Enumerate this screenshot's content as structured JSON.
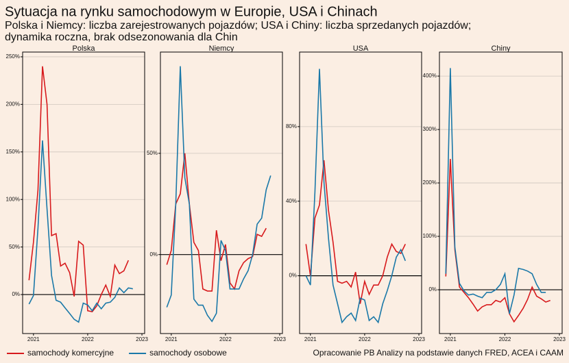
{
  "title": "Sytuacja na rynku samochodowym w Europie, USA i Chinach",
  "subtitle": [
    "Polska i Niemcy: liczba zarejestrowanych pojazdów; USA i Chiny: liczba sprzedanych pojazdów;",
    "dynamika roczna, brak odsezonowania dla Chin"
  ],
  "source": "Opracowanie PB Analizy na podstawie danych FRED, ACEA i CAAM",
  "chart_data": [
    {
      "type": "line",
      "title": "Polska",
      "xlim": [
        2020.8,
        2023.05
      ],
      "xticks": [
        2021,
        2022,
        2023
      ],
      "ylim": [
        -41,
        255
      ],
      "yticks": [
        {
          "value": 0,
          "label": "0%"
        },
        {
          "value": 50,
          "label": "50%"
        },
        {
          "value": 100,
          "label": "100%"
        },
        {
          "value": 150,
          "label": "150%"
        },
        {
          "value": 200,
          "label": "200%"
        },
        {
          "value": 250,
          "label": "250%"
        }
      ],
      "grid": true,
      "x": [
        2020.917,
        2021,
        2021.083,
        2021.167,
        2021.25,
        2021.333,
        2021.417,
        2021.5,
        2021.583,
        2021.667,
        2021.75,
        2021.833,
        2021.917,
        2022,
        2022.083,
        2022.167,
        2022.25,
        2022.333,
        2022.417,
        2022.5,
        2022.583,
        2022.667,
        2022.75,
        2022.833
      ],
      "series": [
        {
          "name": "samochody komercyjne",
          "color": "#d7191c",
          "values": [
            15,
            55,
            110,
            240,
            200,
            62,
            64,
            30,
            33,
            23,
            -2,
            56,
            52,
            -17,
            -18,
            -12,
            0,
            10,
            -2,
            31,
            22,
            25,
            36,
            null
          ]
        },
        {
          "name": "samochody osobowe",
          "color": "#1a78a8",
          "values": [
            -10,
            -1,
            70,
            162,
            90,
            20,
            -6,
            -8,
            -14,
            -20,
            -26,
            -29,
            -9,
            -11,
            -17,
            -9,
            -15,
            -9,
            -8,
            -3,
            7,
            2,
            7,
            6
          ]
        }
      ]
    },
    {
      "type": "line",
      "title": "Niemcy",
      "xlim": [
        2020.8,
        2023.05
      ],
      "xticks": [
        2021,
        2022,
        2023
      ],
      "ylim": [
        -39,
        100
      ],
      "yticks": [
        {
          "value": 0,
          "label": "0%"
        },
        {
          "value": 50,
          "label": "50%"
        }
      ],
      "grid": true,
      "x": [
        2020.917,
        2021,
        2021.083,
        2021.167,
        2021.25,
        2021.333,
        2021.417,
        2021.5,
        2021.583,
        2021.667,
        2021.75,
        2021.833,
        2021.917,
        2022,
        2022.083,
        2022.167,
        2022.25,
        2022.333,
        2022.417,
        2022.5,
        2022.583,
        2022.667,
        2022.75,
        2022.833
      ],
      "series": [
        {
          "name": "samochody komercyjne",
          "color": "#d7191c",
          "values": [
            -5,
            2,
            25,
            30,
            50,
            25,
            6,
            2,
            -17,
            -18,
            -18,
            12,
            -3,
            5,
            -14,
            -17,
            -8,
            -4,
            -2,
            -1,
            10,
            9,
            13,
            null
          ]
        },
        {
          "name": "samochody osobowe",
          "color": "#1a78a8",
          "values": [
            -26,
            -20,
            25,
            93,
            38,
            25,
            -22,
            -25,
            -25,
            -30,
            -33,
            -29,
            7,
            2,
            -17,
            -17,
            -17,
            -12,
            -8,
            0,
            15,
            18,
            32,
            39
          ]
        }
      ]
    },
    {
      "type": "line",
      "title": "USA",
      "xlim": [
        2020.8,
        2023.05
      ],
      "xticks": [
        2021,
        2022,
        2023
      ],
      "ylim": [
        -31,
        120
      ],
      "yticks": [
        {
          "value": 0,
          "label": "0%"
        },
        {
          "value": 40,
          "label": "40%"
        },
        {
          "value": 80,
          "label": "80%"
        }
      ],
      "grid": true,
      "x": [
        2020.917,
        2021,
        2021.083,
        2021.167,
        2021.25,
        2021.333,
        2021.417,
        2021.5,
        2021.583,
        2021.667,
        2021.75,
        2021.833,
        2021.917,
        2022,
        2022.083,
        2022.167,
        2022.25,
        2022.333,
        2022.417,
        2022.5,
        2022.583,
        2022.667,
        2022.75,
        2022.833
      ],
      "series": [
        {
          "name": "samochody komercyjne",
          "color": "#d7191c",
          "values": [
            17,
            0,
            31,
            38,
            62,
            35,
            18,
            -3,
            -4,
            -3,
            -6,
            2,
            -15,
            -3,
            -10,
            -5,
            -5,
            0,
            10,
            17,
            13,
            12,
            17,
            null
          ]
        },
        {
          "name": "samochody osobowe",
          "color": "#1a78a8",
          "values": [
            0,
            -5,
            45,
            111,
            50,
            20,
            -5,
            -15,
            -25,
            -22,
            -20,
            -24,
            -12,
            -13,
            -24,
            -22,
            -25,
            -15,
            -8,
            0,
            10,
            14,
            8,
            null
          ]
        }
      ]
    },
    {
      "type": "line",
      "title": "Chiny",
      "xlim": [
        2020.8,
        2023.05
      ],
      "xticks": [
        2021,
        2022,
        2023
      ],
      "ylim": [
        -82,
        445
      ],
      "yticks": [
        {
          "value": 0,
          "label": "0%"
        },
        {
          "value": 100,
          "label": "100%"
        },
        {
          "value": 200,
          "label": "200%"
        },
        {
          "value": 300,
          "label": "300%"
        },
        {
          "value": 400,
          "label": "400%"
        }
      ],
      "grid": true,
      "x": [
        2020.917,
        2021,
        2021.083,
        2021.167,
        2021.25,
        2021.333,
        2021.417,
        2021.5,
        2021.583,
        2021.667,
        2021.75,
        2021.833,
        2021.917,
        2022,
        2022.083,
        2022.167,
        2022.25,
        2022.333,
        2022.417,
        2022.5,
        2022.583,
        2022.667,
        2022.75,
        2022.833
      ],
      "series": [
        {
          "name": "samochody komercyjne",
          "color": "#d7191c",
          "values": [
            25,
            245,
            75,
            5,
            -5,
            -15,
            -27,
            -40,
            -32,
            -28,
            -28,
            -20,
            -23,
            -15,
            -45,
            -60,
            -48,
            -35,
            -18,
            5,
            -12,
            -17,
            -23,
            -20
          ]
        },
        {
          "name": "samochody osobowe",
          "color": "#1a78a8",
          "values": [
            30,
            415,
            80,
            12,
            -2,
            -10,
            -8,
            -12,
            -15,
            -5,
            -5,
            0,
            10,
            30,
            -45,
            -10,
            40,
            38,
            35,
            30,
            10,
            -5,
            -5,
            null
          ]
        }
      ]
    }
  ]
}
